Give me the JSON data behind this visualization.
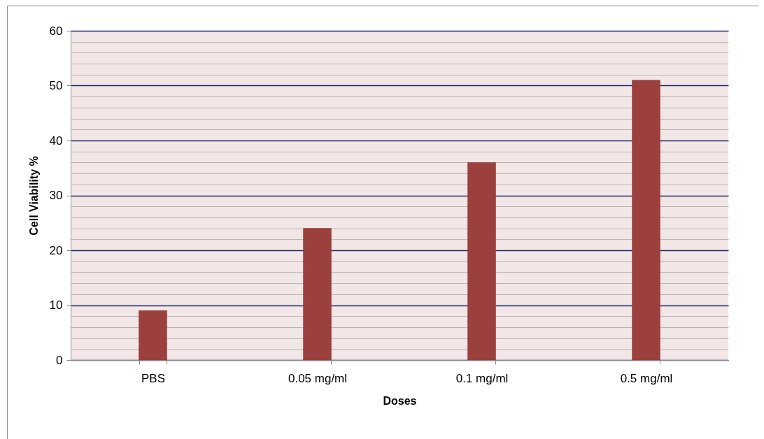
{
  "chart_data": {
    "type": "bar",
    "xlabel": "Doses",
    "ylabel": "Cell Viability %",
    "categories": [
      "PBS",
      "0.05 mg/ml",
      "0.1 mg/ml",
      "0.5 mg/ml"
    ],
    "values": [
      9,
      24,
      36,
      51
    ],
    "color": "#9c403e",
    "ylim": [
      0,
      60
    ],
    "yticks": [
      0,
      {
        "value": 2,
        "label": null
      },
      {
        "value": 4,
        "label": null
      },
      {
        "value": 6,
        "label": null
      },
      {
        "value": 8,
        "label": null
      },
      10,
      {
        "value": 12,
        "label": null
      },
      {
        "value": 14,
        "label": null
      },
      {
        "value": 16,
        "label": null
      },
      {
        "value": 18,
        "label": null
      },
      20,
      {
        "value": 22,
        "label": null
      },
      {
        "value": 24,
        "label": null
      },
      {
        "value": 26,
        "label": null
      },
      {
        "value": 28,
        "label": null
      },
      30,
      {
        "value": 32,
        "label": null
      },
      {
        "value": 34,
        "label": null
      },
      {
        "value": 36,
        "label": null
      },
      {
        "value": 38,
        "label": null
      },
      40,
      {
        "value": 42,
        "label": null
      },
      {
        "value": 44,
        "label": null
      },
      {
        "value": 46,
        "label": null
      },
      {
        "value": 48,
        "label": null
      },
      50,
      {
        "value": 52,
        "label": null
      },
      {
        "value": 54,
        "label": null
      },
      {
        "value": 56,
        "label": null
      },
      {
        "value": 58,
        "label": null
      },
      60
    ],
    "grid": "y"
  }
}
